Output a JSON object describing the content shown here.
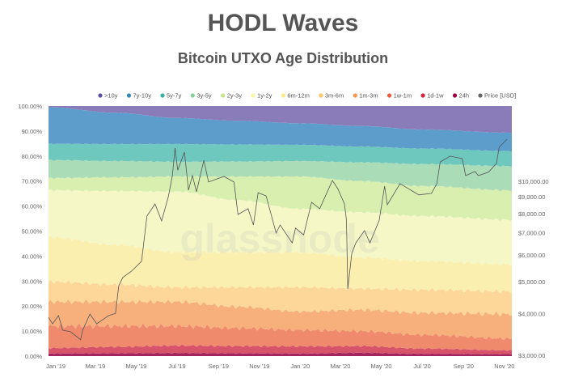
{
  "chart_data": {
    "type": "area",
    "stacked": "percent",
    "title": "HODL Waves",
    "subtitle": "Bitcoin UTXO Age Distribution",
    "watermark": "glassnode",
    "legend_position": "top",
    "grid": false,
    "y_left": {
      "ylim": [
        0,
        100
      ],
      "ticks": [
        "0.00%",
        "10.00%",
        "20.00%",
        "30.00%",
        "40.00%",
        "50.00%",
        "60.00%",
        "70.00%",
        "80.00%",
        "90.00%",
        "100.00%"
      ]
    },
    "y_right": {
      "scale": "log",
      "ylim": [
        3000,
        13500
      ],
      "ticks": [
        {
          "value": 3000,
          "label": "$3,000.00"
        },
        {
          "value": 4000,
          "label": "$4,000.00"
        },
        {
          "value": 5000,
          "label": "$5,000.00"
        },
        {
          "value": 6000,
          "label": "$6,000.00"
        },
        {
          "value": 7000,
          "label": "$7,000.00"
        },
        {
          "value": 8000,
          "label": "$8,000.00"
        },
        {
          "value": 9000,
          "label": "$9,000.00"
        },
        {
          "value": 10000,
          "label": "$10,000.00"
        }
      ]
    },
    "x_range": [
      "2018-12-21",
      "2020-11-12"
    ],
    "x_ticks": [
      {
        "date": "2019-01-01",
        "label": "Jan '19"
      },
      {
        "date": "2019-03-01",
        "label": "Mar '19"
      },
      {
        "date": "2019-05-01",
        "label": "May '19"
      },
      {
        "date": "2019-07-01",
        "label": "Jul '19"
      },
      {
        "date": "2019-09-01",
        "label": "Sep '19"
      },
      {
        "date": "2019-11-01",
        "label": "Nov '19"
      },
      {
        "date": "2020-01-01",
        "label": "Jan '20"
      },
      {
        "date": "2020-03-01",
        "label": "Mar '20"
      },
      {
        "date": "2020-05-01",
        "label": "May '20"
      },
      {
        "date": "2020-07-01",
        "label": "Jul '20"
      },
      {
        "date": "2020-09-01",
        "label": "Sep '20"
      },
      {
        "date": "2020-11-01",
        "label": "Nov '20"
      }
    ],
    "dates": [
      "2018-12-21",
      "2019-04-01",
      "2019-07-01",
      "2019-10-01",
      "2020-01-01",
      "2020-04-01",
      "2020-07-01",
      "2020-11-12"
    ],
    "series": [
      {
        "name": "24h",
        "color": "#9e0142",
        "values": [
          1.0,
          1.1,
          1.2,
          1.1,
          1.0,
          1.3,
          0.9,
          0.8
        ]
      },
      {
        "name": "1d-1w",
        "color": "#d53e4f",
        "values": [
          2.2,
          2.6,
          3.0,
          2.9,
          2.9,
          2.7,
          2.1,
          1.5
        ]
      },
      {
        "name": "1w-1m",
        "color": "#f46d43",
        "values": [
          8.8,
          8.3,
          7.8,
          7.2,
          6.5,
          6.0,
          5.5,
          4.7
        ]
      },
      {
        "name": "1m-3m",
        "color": "#fdae61",
        "values": [
          9.7,
          9.7,
          9.7,
          8.5,
          7.4,
          8.5,
          8.8,
          9.8
        ]
      },
      {
        "name": "3m-6m",
        "color": "#fee08b",
        "values": [
          8.1,
          6.9,
          5.8,
          7.8,
          9.7,
          8.5,
          9.2,
          9.1
        ]
      },
      {
        "name": "6m-12m",
        "color": "#ffffbf",
        "values": [
          17.8,
          15.9,
          14.0,
          14.0,
          14.0,
          12.5,
          11.5,
          10.8
        ]
      },
      {
        "name": "1y-2y",
        "color": "#e6f598",
        "values": [
          18.7,
          21.5,
          24.3,
          20.8,
          17.4,
          18.0,
          18.0,
          17.8
        ]
      },
      {
        "name": "2y-3y",
        "color": "#abdda4",
        "values": [
          4.9,
          5.5,
          6.0,
          9.5,
          12.9,
          12.5,
          12.0,
          11.8
        ]
      },
      {
        "name": "3y-5y",
        "color": "#66c2a5",
        "values": [
          7.2,
          6.5,
          5.9,
          6.0,
          6.2,
          7.5,
          8.8,
          9.7
        ]
      },
      {
        "name": "5y-7y",
        "color": "#3288bd",
        "values": [
          6.5,
          6.8,
          7.1,
          6.8,
          6.5,
          6.3,
          6.2,
          6.0
        ]
      },
      {
        "name": "7y-10y",
        "color": "#3288bd",
        "values": [
          14.6,
          12.5,
          10.4,
          9.5,
          8.6,
          8.2,
          7.6,
          7.3
        ]
      },
      {
        "name": ">10y",
        "color": "#5e4fa2",
        "values": [
          0.5,
          2.7,
          4.8,
          5.9,
          6.9,
          8.0,
          9.4,
          10.7
        ]
      }
    ],
    "legend": [
      {
        "label": ">10y",
        "color": "#5e4fa2"
      },
      {
        "label": "7y-10y",
        "color": "#3288bd"
      },
      {
        "label": "5y-7y",
        "color": "#3aaea0"
      },
      {
        "label": "3y-5y",
        "color": "#87cf98"
      },
      {
        "label": "2y-3y",
        "color": "#c3e68c"
      },
      {
        "label": "1y-2y",
        "color": "#f4f7a6"
      },
      {
        "label": "6m-12m",
        "color": "#fbe98a"
      },
      {
        "label": "3m-6m",
        "color": "#fdc868"
      },
      {
        "label": "1m-3m",
        "color": "#f9954f"
      },
      {
        "label": "1w-1m",
        "color": "#ee5a3c"
      },
      {
        "label": "1d-1w",
        "color": "#d8243c"
      },
      {
        "label": "24h",
        "color": "#9e0142"
      },
      {
        "label": "Price [USD]",
        "color": "#666666"
      }
    ],
    "price_series": {
      "name": "Price [USD]",
      "color": "#555555",
      "points": [
        [
          "2018-12-21",
          3900
        ],
        [
          "2018-12-27",
          3730
        ],
        [
          "2019-01-05",
          3950
        ],
        [
          "2019-01-11",
          3570
        ],
        [
          "2019-01-23",
          3530
        ],
        [
          "2019-02-07",
          3340
        ],
        [
          "2019-02-10",
          3570
        ],
        [
          "2019-02-21",
          3990
        ],
        [
          "2019-03-03",
          3730
        ],
        [
          "2019-03-21",
          3950
        ],
        [
          "2019-03-31",
          4010
        ],
        [
          "2019-04-05",
          4860
        ],
        [
          "2019-04-11",
          5140
        ],
        [
          "2019-04-24",
          5370
        ],
        [
          "2019-05-09",
          5750
        ],
        [
          "2019-05-17",
          7860
        ],
        [
          "2019-05-29",
          8550
        ],
        [
          "2019-06-08",
          7600
        ],
        [
          "2019-06-18",
          8990
        ],
        [
          "2019-06-24",
          10400
        ],
        [
          "2019-06-28",
          12590
        ],
        [
          "2019-07-02",
          10800
        ],
        [
          "2019-07-12",
          12240
        ],
        [
          "2019-07-18",
          9400
        ],
        [
          "2019-07-24",
          10400
        ],
        [
          "2019-07-30",
          9300
        ],
        [
          "2019-08-10",
          11570
        ],
        [
          "2019-08-17",
          9950
        ],
        [
          "2019-09-09",
          10340
        ],
        [
          "2019-09-24",
          9950
        ],
        [
          "2019-09-30",
          7950
        ],
        [
          "2019-10-15",
          8270
        ],
        [
          "2019-10-23",
          7390
        ],
        [
          "2019-10-30",
          9240
        ],
        [
          "2019-11-11",
          9040
        ],
        [
          "2019-11-26",
          6990
        ],
        [
          "2019-12-02",
          7390
        ],
        [
          "2019-12-20",
          6530
        ],
        [
          "2019-12-25",
          7230
        ],
        [
          "2020-01-06",
          6900
        ],
        [
          "2020-01-18",
          8650
        ],
        [
          "2020-01-30",
          8270
        ],
        [
          "2020-02-18",
          10060
        ],
        [
          "2020-02-26",
          9510
        ],
        [
          "2020-03-07",
          8550
        ],
        [
          "2020-03-10",
          7640
        ],
        [
          "2020-03-12",
          4750
        ],
        [
          "2020-03-18",
          6080
        ],
        [
          "2020-03-24",
          6530
        ],
        [
          "2020-04-06",
          7110
        ],
        [
          "2020-04-14",
          6530
        ],
        [
          "2020-04-28",
          7640
        ],
        [
          "2020-05-06",
          9670
        ],
        [
          "2020-05-10",
          8500
        ],
        [
          "2020-05-29",
          9840
        ],
        [
          "2020-06-26",
          9100
        ],
        [
          "2020-07-15",
          9200
        ],
        [
          "2020-07-23",
          9840
        ],
        [
          "2020-07-28",
          11430
        ],
        [
          "2020-08-12",
          11900
        ],
        [
          "2020-08-30",
          11700
        ],
        [
          "2020-09-04",
          10400
        ],
        [
          "2020-09-18",
          10700
        ],
        [
          "2020-09-23",
          10400
        ],
        [
          "2020-10-08",
          10650
        ],
        [
          "2020-10-20",
          11300
        ],
        [
          "2020-10-24",
          12660
        ],
        [
          "2020-11-05",
          13380
        ]
      ]
    }
  }
}
